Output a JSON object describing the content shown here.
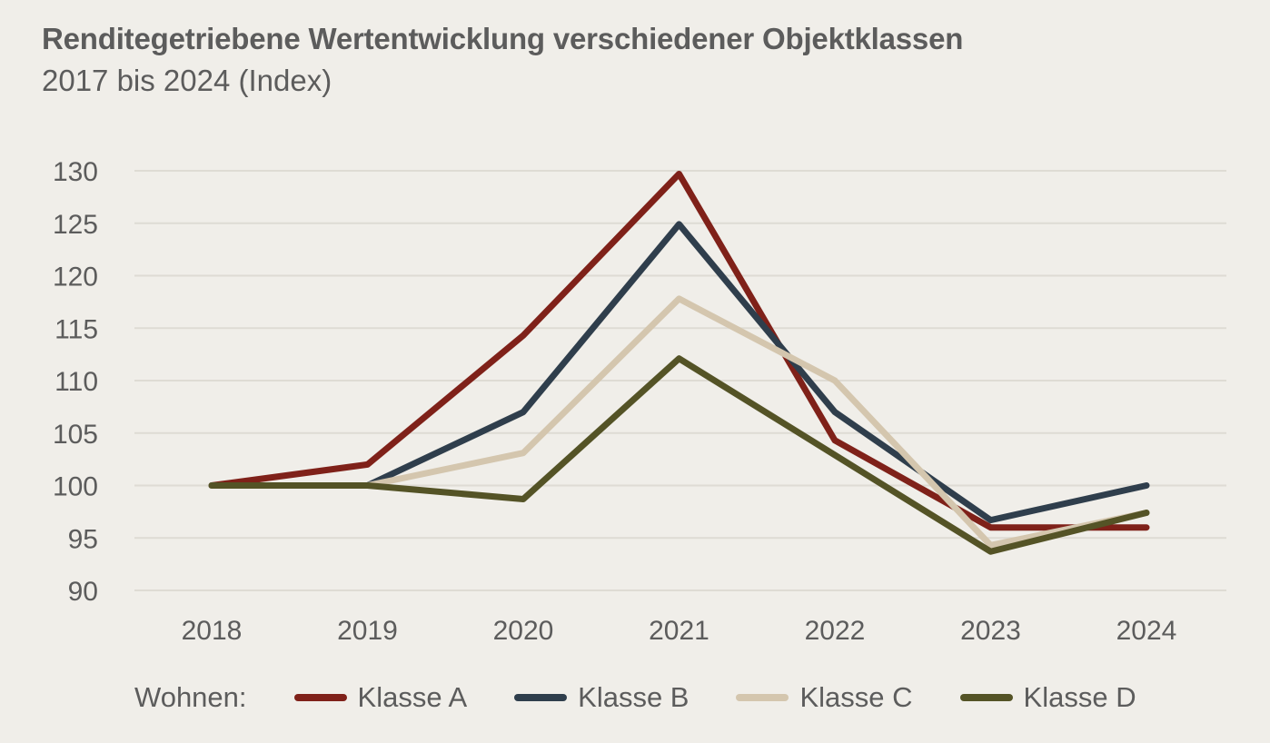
{
  "header": {
    "title": "Renditegetriebene Wertentwicklung verschiedener Objektklassen",
    "subtitle": "2017 bis 2024 (Index)"
  },
  "legend": {
    "prefix": "Wohnen:"
  },
  "chart_data": {
    "type": "line",
    "title": "Renditegetriebene Wertentwicklung verschiedener Objektklassen",
    "subtitle": "2017 bis 2024 (Index)",
    "xlabel": "",
    "ylabel": "",
    "categories": [
      "2018",
      "2019",
      "2020",
      "2021",
      "2022",
      "2023",
      "2024"
    ],
    "yticks": [
      90,
      95,
      100,
      105,
      110,
      115,
      120,
      125,
      130
    ],
    "ylim": [
      90,
      130
    ],
    "grid": true,
    "legend_position": "bottom",
    "series": [
      {
        "name": "Klasse A",
        "color": "#7f2119",
        "values": [
          100,
          102,
          114.3,
          129.7,
          104.3,
          96,
          96
        ]
      },
      {
        "name": "Klasse B",
        "color": "#2f3e4c",
        "values": [
          100,
          100,
          107,
          124.9,
          107,
          96.7,
          100
        ]
      },
      {
        "name": "Klasse C",
        "color": "#d4c6ae",
        "values": [
          100,
          100,
          103.1,
          117.8,
          110,
          94.3,
          97.4
        ]
      },
      {
        "name": "Klasse D",
        "color": "#545326",
        "values": [
          100,
          100,
          98.7,
          112.1,
          102.9,
          93.7,
          97.4
        ]
      }
    ]
  }
}
